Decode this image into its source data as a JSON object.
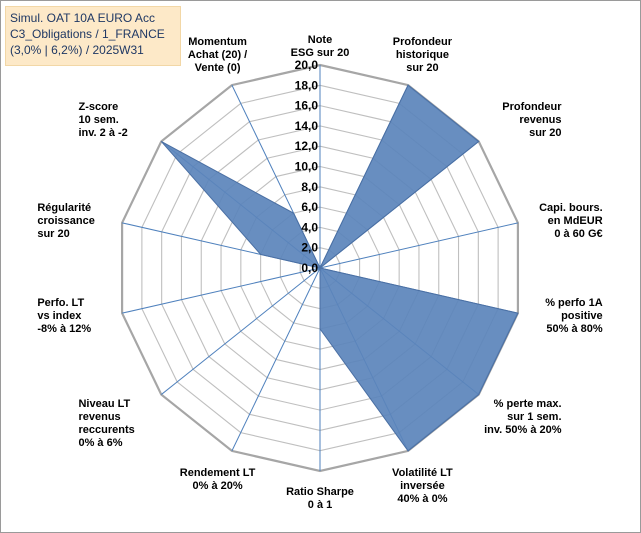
{
  "title_box": {
    "line1": "Simul. OAT 10A EURO Acc",
    "line2": "C3_Obligations / 1_FRANCE",
    "line3": "(3,0% | 6,2%) / 2025W31"
  },
  "colors": {
    "fill": "#5b84bb",
    "stroke": "#4a6fa3",
    "grid": "#bfbfbf",
    "outer_grid": "#a6a6a6",
    "spoke": "#4f81bd",
    "title_bg": "#fde9c8",
    "title_text": "#1f3864"
  },
  "chart_data": {
    "type": "radar",
    "rmin": 0,
    "rmax": 20,
    "ticks": [
      "0,0",
      "2,0",
      "4,0",
      "6,0",
      "8,0",
      "10,0",
      "12,0",
      "14,0",
      "16,0",
      "18,0",
      "20,0"
    ],
    "axes": [
      [
        "Note",
        "ESG sur 20"
      ],
      [
        "Profondeur",
        "historique",
        "sur 20"
      ],
      [
        "Profondeur",
        "revenus",
        "sur 20"
      ],
      [
        "Capi. bours.",
        "en MdEUR",
        "0 à 60 G€"
      ],
      [
        "% perfo 1A",
        "positive",
        "50% à 80%"
      ],
      [
        "% perte max.",
        "sur 1 sem.",
        "inv. 50% à 20%"
      ],
      [
        "Volatilité LT",
        "inversée",
        "40% à 0%"
      ],
      [
        "Ratio Sharpe",
        "0 à 1"
      ],
      [
        "Rendement LT",
        "0% à 20%"
      ],
      [
        "Niveau LT",
        "revenus",
        "reccurents",
        "0% à 6%"
      ],
      [
        "Perfo. LT",
        "vs index",
        "-8% à 12%"
      ],
      [
        "Régularité",
        "croissance",
        "sur 20"
      ],
      [
        "Z-score",
        "10 sem.",
        "inv. 2 à -2"
      ],
      [
        "Momentum",
        "Achat (20) /",
        "Vente (0)"
      ]
    ],
    "values": [
      0,
      20,
      20,
      0,
      20,
      20,
      20,
      6,
      0,
      0,
      0,
      6,
      20,
      6
    ]
  }
}
